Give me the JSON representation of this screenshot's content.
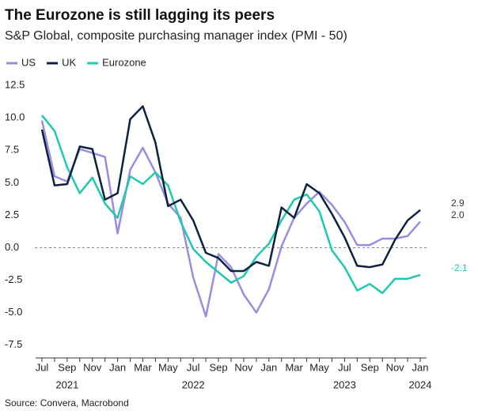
{
  "chart_data": {
    "type": "line",
    "title": "The Eurozone is still lagging its peers",
    "subtitle": "S&P Global, composite purchasing manager index (PMI - 50)",
    "source": "Source: Convera, Macrobond",
    "categories": [
      "Jul",
      null,
      "Sep",
      null,
      "Nov",
      null,
      "Jan",
      null,
      "Mar",
      null,
      "May",
      null,
      "Jul",
      null,
      "Sep",
      null,
      "Nov",
      null,
      "Jan",
      null,
      "Mar",
      null,
      "May",
      null,
      "Jul",
      null,
      "Sep",
      null,
      "Nov",
      null,
      "Jan"
    ],
    "year_labels": [
      "2021",
      "2022",
      "2023",
      "2024"
    ],
    "ylim": [
      -8.5,
      13
    ],
    "yticks": [
      12.5,
      {
        "value": 10,
        "label": "10.0"
      },
      7.5,
      {
        "value": 5,
        "label": "5.0"
      },
      2.5,
      {
        "value": 0,
        "label": "0.0"
      },
      -2.5,
      {
        "value": -5,
        "label": "-5.0"
      },
      -7.5
    ],
    "series": [
      {
        "name": "US",
        "color": "#9b8ce0",
        "end_label": "2.0",
        "values": [
          9.8,
          5.5,
          5.1,
          7.6,
          7.3,
          7.0,
          1.1,
          6.0,
          7.7,
          5.8,
          3.4,
          2.3,
          -2.3,
          -5.3,
          -0.5,
          -1.5,
          -3.6,
          -5.0,
          -3.2,
          0.1,
          2.3,
          3.4,
          4.3,
          3.3,
          2.0,
          0.2,
          0.2,
          0.7,
          0.7,
          0.9,
          2.0
        ]
      },
      {
        "name": "UK",
        "color": "#0d2240",
        "end_label": "2.9",
        "values": [
          9.1,
          4.8,
          4.9,
          7.8,
          7.6,
          3.7,
          4.2,
          9.9,
          10.9,
          8.1,
          3.2,
          3.7,
          2.1,
          -0.4,
          -0.8,
          -1.8,
          -1.8,
          -1.1,
          -1.4,
          3.1,
          2.3,
          4.9,
          4.2,
          2.6,
          0.8,
          -1.4,
          -1.5,
          -1.3,
          0.6,
          2.1,
          2.9
        ]
      },
      {
        "name": "Eurozone",
        "color": "#1fc8b0",
        "end_label": "-2.1",
        "values": [
          10.2,
          9.0,
          6.2,
          4.2,
          5.4,
          3.4,
          2.3,
          5.5,
          4.9,
          5.8,
          4.8,
          2.0,
          -0.1,
          -1.1,
          -1.9,
          -2.7,
          -2.2,
          -0.7,
          0.3,
          2.1,
          3.7,
          4.1,
          2.8,
          -0.2,
          -1.5,
          -3.3,
          -2.8,
          -3.5,
          -2.4,
          -2.4,
          -2.1
        ]
      }
    ]
  }
}
